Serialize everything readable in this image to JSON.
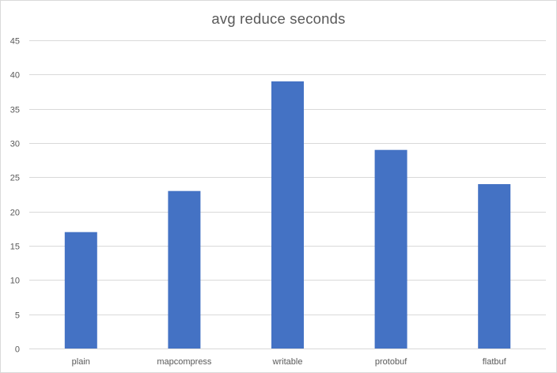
{
  "chart_data": {
    "type": "bar",
    "title": "avg reduce seconds",
    "xlabel": "",
    "ylabel": "",
    "categories": [
      "plain",
      "mapcompress",
      "writable",
      "protobuf",
      "flatbuf"
    ],
    "values": [
      17,
      23,
      39,
      29,
      24
    ],
    "ylim": [
      0,
      45
    ],
    "yticks": [
      0,
      5,
      10,
      15,
      20,
      25,
      30,
      35,
      40,
      45
    ],
    "grid": true,
    "legend": "none",
    "bar_color": "#4472c4",
    "grid_color": "#d9d9d9",
    "text_color": "#595959"
  }
}
